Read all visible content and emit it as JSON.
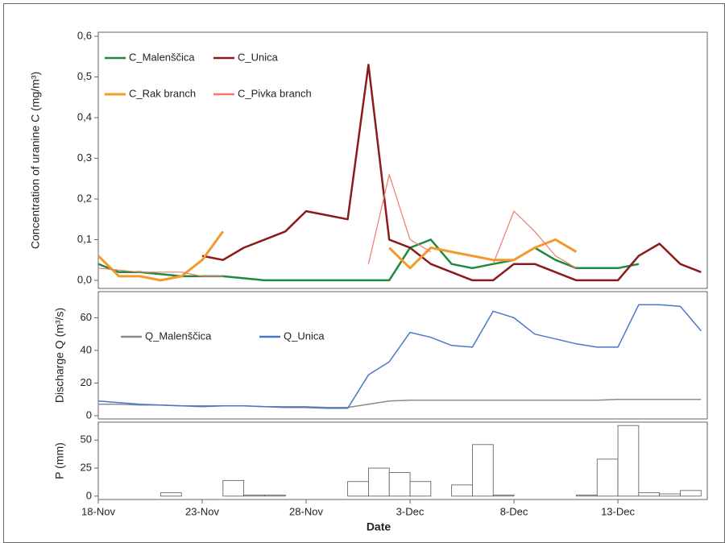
{
  "chart_data": [
    {
      "type": "line",
      "y_label": "Concentration of uranine  C (mg/m³)",
      "legend": "top-left",
      "x": [
        0,
        1,
        2,
        3,
        4,
        5,
        6,
        7,
        8,
        9,
        10,
        11,
        12,
        13,
        14,
        15,
        16,
        17,
        18,
        19,
        20,
        21,
        22,
        23,
        24,
        25,
        26,
        27,
        28,
        29
      ],
      "xlim": [
        0,
        29.3
      ],
      "ylim": [
        -0.02,
        0.61
      ],
      "yticks": [
        {
          "value": 0,
          "label": "0,0"
        },
        {
          "value": 0.1,
          "label": "0,1"
        },
        {
          "value": 0.2,
          "label": "0,2"
        },
        {
          "value": 0.3,
          "label": "0,3"
        },
        {
          "value": 0.4,
          "label": "0,4"
        },
        {
          "value": 0.5,
          "label": "0,5"
        },
        {
          "value": 0.6,
          "label": "0,6"
        }
      ],
      "series": [
        {
          "name": "C_Malenščica",
          "color": "#1f8a3b",
          "values": [
            0.04,
            0.02,
            0.02,
            0.015,
            0.01,
            0.01,
            0.01,
            0.005,
            0,
            0,
            0,
            0,
            0,
            0,
            0,
            0.08,
            0.1,
            0.04,
            0.03,
            0.04,
            0.05,
            0.08,
            0.05,
            0.03,
            0.03,
            0.03,
            0.04,
            null,
            null,
            null
          ]
        },
        {
          "name": "C_Unica",
          "color": "#8b1a1a",
          "values": [
            null,
            null,
            null,
            null,
            null,
            0.06,
            0.05,
            0.08,
            0.1,
            0.12,
            0.17,
            0.16,
            0.15,
            0.53,
            0.1,
            0.08,
            0.04,
            0.02,
            0,
            0,
            0.04,
            0.04,
            0.02,
            0,
            0,
            0,
            0.06,
            0.09,
            0.04,
            0.02
          ]
        },
        {
          "name": "C_Rak branch",
          "color": "#f39a2b",
          "values": [
            0.06,
            0.01,
            0.01,
            0,
            0.01,
            0.05,
            0.12,
            null,
            null,
            null,
            null,
            null,
            null,
            null,
            0.08,
            0.03,
            0.08,
            0.07,
            0.06,
            0.05,
            0.05,
            0.08,
            0.1,
            0.07,
            null,
            null,
            null,
            null,
            null,
            null
          ]
        },
        {
          "name": "C_Pivka branch",
          "color": "#f07a70",
          "values": [
            0.03,
            0.025,
            0.02,
            0.02,
            0.02,
            0.01,
            0.01,
            null,
            null,
            null,
            null,
            null,
            null,
            0.04,
            0.26,
            0.1,
            0.07,
            null,
            null,
            0.04,
            0.17,
            0.12,
            0.06,
            0.03,
            null,
            null,
            null,
            null,
            null,
            null
          ]
        }
      ]
    },
    {
      "type": "line",
      "y_label": "Discharge  Q (m³/s)",
      "legend": "top-left",
      "x": [
        0,
        1,
        2,
        3,
        4,
        5,
        6,
        7,
        8,
        9,
        10,
        11,
        12,
        13,
        14,
        15,
        16,
        17,
        18,
        19,
        20,
        21,
        22,
        23,
        24,
        25,
        26,
        27,
        28,
        29
      ],
      "xlim": [
        0,
        29.3
      ],
      "ylim": [
        -2,
        76
      ],
      "yticks": [
        0,
        20,
        40,
        60
      ],
      "series": [
        {
          "name": "Q_Malenščica",
          "color": "#8c8c8c",
          "values": [
            7,
            7,
            6.5,
            6.5,
            6,
            6,
            6,
            6,
            5.5,
            5.5,
            5.5,
            5,
            5,
            7,
            9,
            9.5,
            9.5,
            9.5,
            9.5,
            9.5,
            9.5,
            9.5,
            9.5,
            9.5,
            9.5,
            10,
            10,
            10,
            10,
            10
          ]
        },
        {
          "name": "Q_Unica",
          "color": "#4a78c8",
          "values": [
            9,
            8,
            7,
            6.5,
            6,
            5.5,
            6,
            6,
            5.5,
            5,
            5,
            4.5,
            4.5,
            25,
            33,
            51,
            48,
            43,
            42,
            64,
            60,
            50,
            47,
            44,
            42,
            42,
            68,
            68,
            67,
            52
          ]
        }
      ]
    },
    {
      "type": "histogram",
      "y_label": "P (mm)",
      "x_label": "Date",
      "color": "#ffffff",
      "bins": [
        0,
        1,
        2,
        3,
        4,
        5,
        6,
        7,
        8,
        9,
        10,
        11,
        12,
        13,
        14,
        15,
        16,
        17,
        18,
        19,
        20,
        21,
        22,
        23,
        24,
        25,
        26,
        27,
        28,
        29
      ],
      "values": [
        0,
        0,
        0,
        3,
        0,
        0,
        14,
        1,
        1,
        0,
        0,
        0,
        13,
        25,
        21,
        13,
        0,
        10,
        46,
        1,
        0,
        0,
        0,
        1,
        33,
        63,
        3,
        2,
        5
      ],
      "xlim": [
        0,
        29.3
      ],
      "ylim": [
        -3,
        66
      ],
      "yticks": [
        0,
        25,
        50
      ],
      "xticks": [
        {
          "value": 0,
          "label": "18-Nov"
        },
        {
          "value": 5,
          "label": "23-Nov"
        },
        {
          "value": 10,
          "label": "28-Nov"
        },
        {
          "value": 15,
          "label": "3-Dec"
        },
        {
          "value": 20,
          "label": "8-Dec"
        },
        {
          "value": 25,
          "label": "13-Dec"
        }
      ]
    }
  ]
}
